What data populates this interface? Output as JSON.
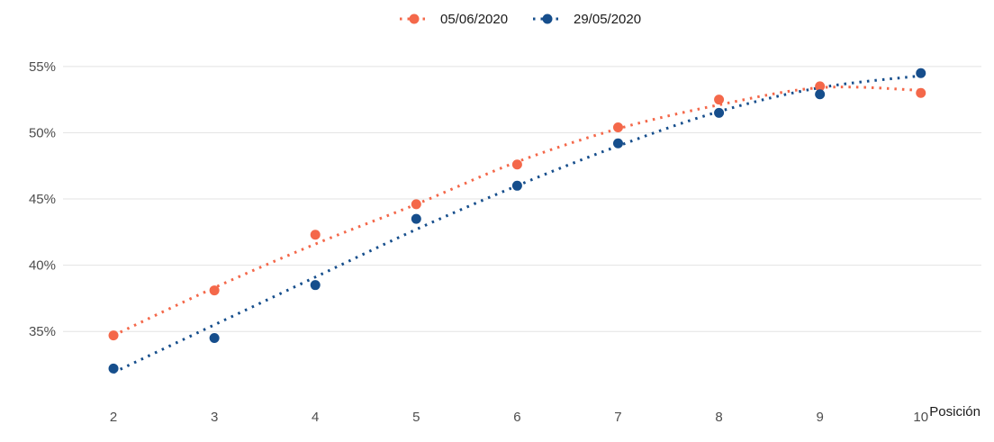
{
  "chart_data": {
    "type": "scatter",
    "title": "",
    "xlabel": "Posición",
    "ylabel": "",
    "x": [
      2,
      3,
      4,
      5,
      6,
      7,
      8,
      9,
      10
    ],
    "xlim": [
      1.5,
      10.6
    ],
    "ylim": [
      30.8,
      57.3
    ],
    "x_ticks": [
      2,
      3,
      4,
      5,
      6,
      7,
      8,
      9,
      10
    ],
    "x_tick_labels": [
      "2",
      "3",
      "4",
      "5",
      "6",
      "7",
      "8",
      "9",
      "10"
    ],
    "y_ticks": [
      35,
      40,
      45,
      50,
      55
    ],
    "y_tick_labels": [
      "35%",
      "40%",
      "45%",
      "50%",
      "55%"
    ],
    "grid": "horizontal",
    "legend_position": "top",
    "series": [
      {
        "name": "05/06/2020",
        "color": "#F4684A",
        "values": [
          34.7,
          38.1,
          42.3,
          44.6,
          47.6,
          50.4,
          52.5,
          53.5,
          53.0
        ],
        "trend": [
          34.7,
          38.3,
          41.6,
          44.6,
          47.8,
          50.3,
          52.1,
          53.4,
          53.2
        ]
      },
      {
        "name": "29/05/2020",
        "color": "#164E8C",
        "values": [
          32.2,
          34.5,
          38.5,
          43.5,
          46.0,
          49.2,
          51.5,
          52.9,
          54.5
        ],
        "trend": [
          31.9,
          35.5,
          39.1,
          42.7,
          46.0,
          49.0,
          51.6,
          53.4,
          54.3
        ]
      }
    ]
  }
}
